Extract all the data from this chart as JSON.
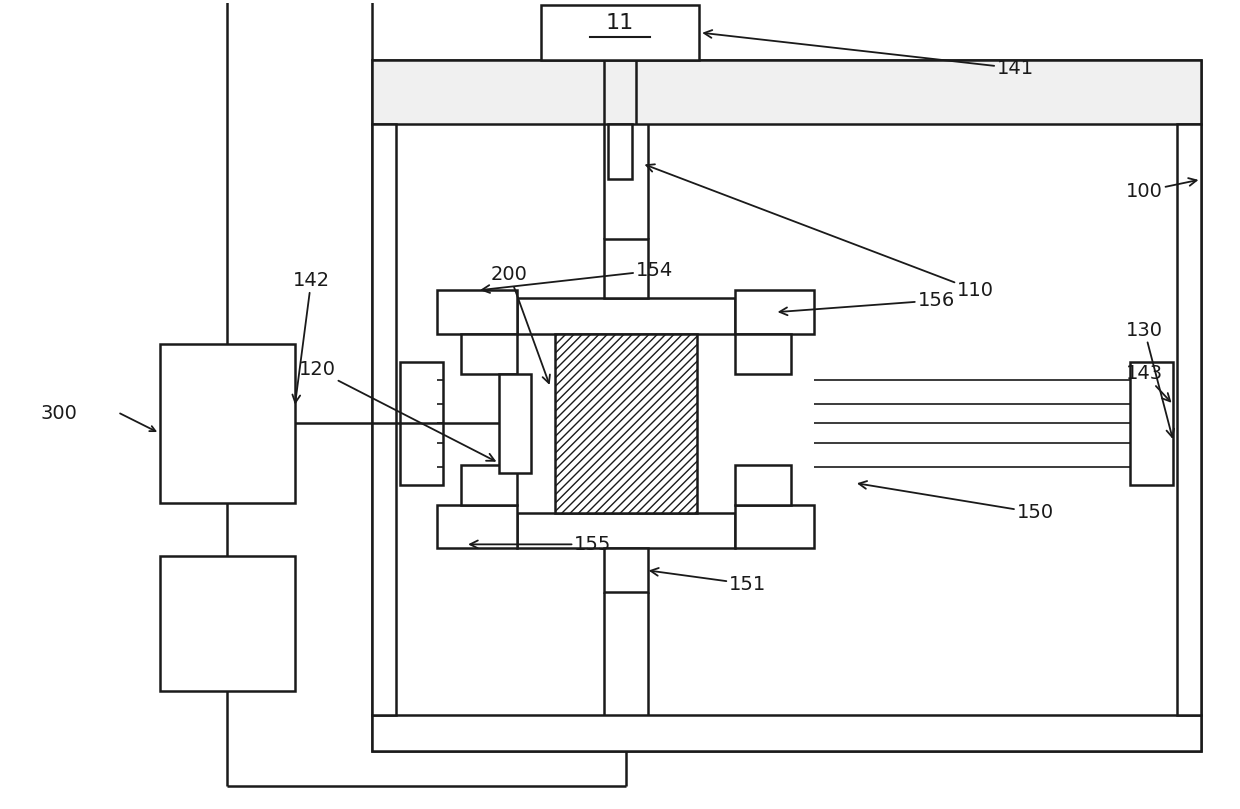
{
  "bg_color": "#ffffff",
  "lw": 1.8,
  "lw_thin": 1.2,
  "fs": 14,
  "fig_w": 12.4,
  "fig_h": 8.09,
  "dpi": 100
}
